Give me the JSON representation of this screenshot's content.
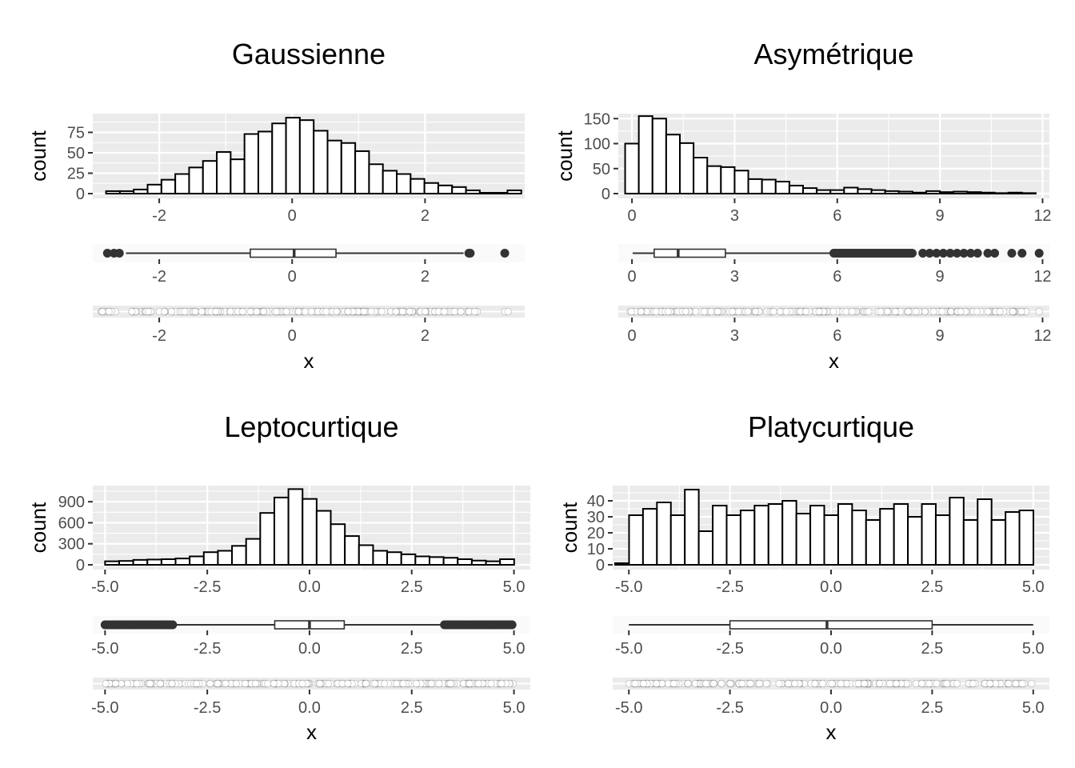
{
  "chart_data": [
    {
      "title": "Gaussienne",
      "type": "histogram",
      "xlabel": "x",
      "ylabel": "count",
      "xlim": [
        -3.0,
        3.5
      ],
      "x_ticks": [
        -2,
        0,
        2
      ],
      "x_tick_labels": [
        "-2",
        "0",
        "2"
      ],
      "y_ticks": [
        0,
        25,
        50,
        75
      ],
      "y_tick_labels": [
        "0",
        "25",
        "50",
        "75"
      ],
      "ylim": [
        0,
        98
      ],
      "grid": true,
      "histogram": {
        "bin_start": -2.8,
        "bin_width": 0.2083,
        "counts": [
          3,
          3,
          5,
          11,
          17,
          24,
          32,
          40,
          51,
          42,
          73,
          76,
          86,
          93,
          90,
          77,
          65,
          62,
          52,
          36,
          28,
          24,
          18,
          13,
          10,
          8,
          4,
          1,
          1,
          4
        ]
      },
      "boxplot": {
        "lower_whisker": -2.5,
        "q1": -0.63,
        "median": 0.03,
        "q3": 0.66,
        "upper_whisker": 2.58,
        "outliers": [
          -2.78,
          -2.68,
          -2.6,
          2.66,
          2.68,
          3.2
        ]
      },
      "strip": {
        "min": -2.9,
        "max": 2.8,
        "isolated": [
          3.2,
          3.25
        ],
        "n_points": 1000
      }
    },
    {
      "title": "Asymétrique",
      "type": "histogram",
      "xlabel": "x",
      "ylabel": "count",
      "xlim": [
        -0.4,
        12.2
      ],
      "x_ticks": [
        0,
        3,
        6,
        9,
        12
      ],
      "x_tick_labels": [
        "0",
        "3",
        "6",
        "9",
        "12"
      ],
      "y_ticks": [
        0,
        50,
        100,
        150
      ],
      "y_tick_labels": [
        "0",
        "50",
        "100",
        "150"
      ],
      "ylim": [
        0,
        160
      ],
      "grid": true,
      "histogram": {
        "bin_start": -0.2,
        "bin_width": 0.4,
        "counts": [
          100,
          155,
          150,
          118,
          101,
          72,
          55,
          53,
          46,
          29,
          28,
          24,
          16,
          11,
          7,
          7,
          12,
          9,
          7,
          5,
          4,
          2,
          5,
          3,
          4,
          3,
          2,
          1,
          2,
          1
        ]
      },
      "boxplot": {
        "lower_whisker": 0.02,
        "q1": 0.65,
        "median": 1.35,
        "q3": 2.73,
        "upper_whisker": 5.9,
        "outliers_range": [
          5.9,
          8.2
        ],
        "outliers": [
          8.5,
          8.7,
          8.9,
          9.1,
          9.3,
          9.5,
          9.7,
          9.9,
          10.1,
          10.4,
          10.6,
          11.1,
          11.4,
          11.9
        ]
      },
      "strip": {
        "min": -0.1,
        "max": 11.6,
        "isolated": [
          11.9
        ],
        "n_points": 1000
      }
    },
    {
      "title": "Leptocurtique",
      "type": "histogram",
      "xlabel": "x",
      "ylabel": "count",
      "xlim": [
        -5.3,
        5.4
      ],
      "x_ticks": [
        -5.0,
        -2.5,
        0.0,
        2.5,
        5.0
      ],
      "x_tick_labels": [
        "-5.0",
        "-2.5",
        "0.0",
        "2.5",
        "5.0"
      ],
      "y_ticks": [
        0,
        300,
        600,
        900
      ],
      "y_tick_labels": [
        "0",
        "300",
        "600",
        "900"
      ],
      "ylim": [
        0,
        1130
      ],
      "grid": true,
      "histogram": {
        "bin_start": -5.0,
        "bin_width": 0.345,
        "counts": [
          50,
          55,
          70,
          75,
          80,
          90,
          120,
          180,
          200,
          270,
          370,
          740,
          960,
          1080,
          940,
          770,
          580,
          410,
          280,
          200,
          180,
          150,
          120,
          110,
          100,
          80,
          60,
          50,
          80,
          0
        ]
      },
      "boxplot": {
        "lower_whisker": -3.3,
        "q1": -0.85,
        "median": 0.0,
        "q3": 0.85,
        "upper_whisker": 3.3,
        "outliers_range_low": [
          -5.0,
          -3.3
        ],
        "outliers_range_high": [
          3.3,
          5.0
        ]
      },
      "strip": {
        "min": -5.0,
        "max": 5.0,
        "n_points": 10000
      }
    },
    {
      "title": "Platycurtique",
      "type": "histogram",
      "xlabel": "x",
      "ylabel": "count",
      "xlim": [
        -5.4,
        5.4
      ],
      "x_ticks": [
        -5.0,
        -2.5,
        0.0,
        2.5,
        5.0
      ],
      "x_tick_labels": [
        "-5.0",
        "-2.5",
        "0.0",
        "2.5",
        "5.0"
      ],
      "y_ticks": [
        0,
        10,
        20,
        30,
        40
      ],
      "y_tick_labels": [
        "0",
        "10",
        "20",
        "30",
        "40"
      ],
      "ylim": [
        0,
        49.5
      ],
      "grid": true,
      "histogram": {
        "bin_start": -5.34,
        "bin_width": 0.3448,
        "counts": [
          1,
          31,
          35,
          39,
          31,
          47,
          21,
          37,
          31,
          34,
          37,
          38,
          40,
          32,
          37,
          31,
          38,
          34,
          28,
          35,
          38,
          30,
          38,
          31,
          42,
          28,
          41,
          28,
          33,
          34
        ]
      },
      "boxplot": {
        "lower_whisker": -5.0,
        "q1": -2.5,
        "median": -0.1,
        "q3": 2.5,
        "upper_whisker": 5.0
      },
      "strip": {
        "min": -5.0,
        "max": 5.0,
        "n_points": 1000
      }
    }
  ]
}
